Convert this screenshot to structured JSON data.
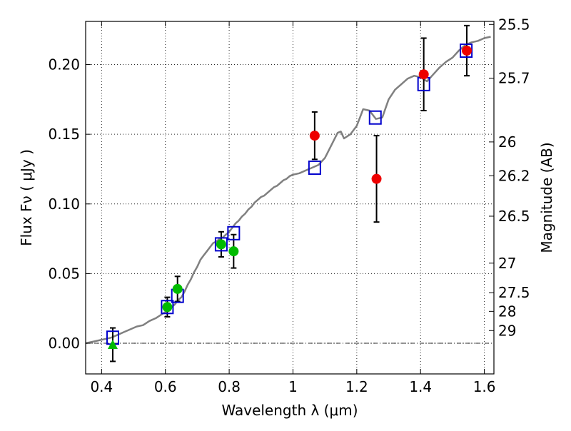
{
  "chart_data": {
    "type": "scatter",
    "title": "",
    "xlabel": "Wavelength  λ (μm)",
    "ylabel": "Flux  Fν  ( μJy )",
    "y2label": "Magnitude (AB)",
    "xlim": [
      0.35,
      1.63
    ],
    "ylim": [
      -0.022,
      0.231
    ],
    "grid": true,
    "x_ticks": [
      0.4,
      0.6,
      0.8,
      1.0,
      1.2,
      1.4,
      1.6
    ],
    "x_tick_labels": [
      "0.4",
      "0.6",
      "0.8",
      "1",
      "1.2",
      "1.4",
      "1.6"
    ],
    "y_ticks": [
      0.0,
      0.05,
      0.1,
      0.15,
      0.2
    ],
    "y_tick_labels": [
      "0.00",
      "0.05",
      "0.10",
      "0.15",
      "0.20"
    ],
    "magnitude_ticks": [
      {
        "label": "25.5",
        "flux": 0.2288
      },
      {
        "label": "25.7",
        "flux": 0.1903
      },
      {
        "label": "26",
        "flux": 0.1445
      },
      {
        "label": "26.2",
        "flux": 0.1202
      },
      {
        "label": "26.5",
        "flux": 0.0912
      },
      {
        "label": "27",
        "flux": 0.0575
      },
      {
        "label": "27.5",
        "flux": 0.0363
      },
      {
        "label": "28",
        "flux": 0.0229
      },
      {
        "label": "29",
        "flux": 0.0091
      }
    ],
    "colors": {
      "model": "#808080",
      "model_photometry": "#0000cc",
      "green_points": "#00bb00",
      "red_points": "#ee0000",
      "error_bars": "#000000",
      "zero_line": "#000000"
    },
    "model_sed": {
      "x": [
        0.35,
        0.37,
        0.39,
        0.41,
        0.43,
        0.45,
        0.47,
        0.49,
        0.51,
        0.53,
        0.55,
        0.57,
        0.59,
        0.61,
        0.62,
        0.63,
        0.64,
        0.65,
        0.66,
        0.67,
        0.68,
        0.69,
        0.7,
        0.71,
        0.72,
        0.73,
        0.74,
        0.75,
        0.76,
        0.77,
        0.78,
        0.79,
        0.8,
        0.81,
        0.82,
        0.83,
        0.84,
        0.85,
        0.86,
        0.87,
        0.88,
        0.89,
        0.9,
        0.91,
        0.92,
        0.93,
        0.94,
        0.95,
        0.96,
        0.97,
        0.98,
        0.99,
        1.0,
        1.02,
        1.04,
        1.06,
        1.08,
        1.1,
        1.12,
        1.14,
        1.15,
        1.16,
        1.18,
        1.2,
        1.22,
        1.24,
        1.26,
        1.28,
        1.3,
        1.32,
        1.34,
        1.36,
        1.38,
        1.4,
        1.42,
        1.44,
        1.46,
        1.48,
        1.5,
        1.52,
        1.54,
        1.56,
        1.58,
        1.6,
        1.62
      ],
      "y": [
        0.0,
        0.001,
        0.002,
        0.003,
        0.004,
        0.006,
        0.008,
        0.01,
        0.012,
        0.013,
        0.016,
        0.018,
        0.021,
        0.024,
        0.026,
        0.028,
        0.031,
        0.033,
        0.037,
        0.042,
        0.046,
        0.051,
        0.055,
        0.06,
        0.063,
        0.066,
        0.069,
        0.072,
        0.073,
        0.075,
        0.076,
        0.078,
        0.08,
        0.083,
        0.086,
        0.088,
        0.091,
        0.093,
        0.096,
        0.098,
        0.101,
        0.103,
        0.105,
        0.106,
        0.108,
        0.11,
        0.112,
        0.113,
        0.115,
        0.117,
        0.118,
        0.12,
        0.121,
        0.122,
        0.124,
        0.126,
        0.128,
        0.133,
        0.142,
        0.151,
        0.152,
        0.147,
        0.15,
        0.156,
        0.168,
        0.167,
        0.161,
        0.162,
        0.175,
        0.182,
        0.186,
        0.19,
        0.192,
        0.191,
        0.188,
        0.193,
        0.198,
        0.202,
        0.205,
        0.21,
        0.214,
        0.216,
        0.217,
        0.219,
        0.22
      ]
    },
    "series": [
      {
        "marker": "square",
        "x": [
          0.435,
          0.606,
          0.638,
          0.775,
          0.814,
          1.068,
          1.258,
          1.41,
          1.543
        ],
        "y": [
          0.004,
          0.026,
          0.034,
          0.071,
          0.079,
          0.126,
          0.162,
          0.186,
          0.21
        ]
      },
      {
        "marker": "circle",
        "x": [
          0.606,
          0.638,
          0.775,
          0.814
        ],
        "y": [
          0.026,
          0.039,
          0.071,
          0.066
        ],
        "err": [
          0.007,
          0.009,
          0.009,
          0.012
        ]
      },
      {
        "marker": "triangle",
        "x": [
          0.435
        ],
        "y": [
          -0.001
        ],
        "err": [
          0.012
        ]
      },
      {
        "marker": "circle",
        "x": [
          1.068,
          1.262,
          1.41,
          1.545
        ],
        "y": [
          0.149,
          0.118,
          0.193,
          0.21
        ],
        "err": [
          0.017,
          0.031,
          0.026,
          0.018
        ]
      }
    ]
  }
}
